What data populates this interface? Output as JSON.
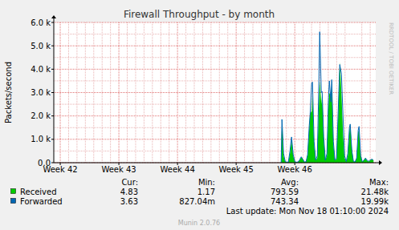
{
  "chart_data": {
    "type": "area",
    "title": "Firewall Throughput - by month",
    "ylabel": "Packets/second",
    "xlim": [
      41.89,
      47.38
    ],
    "xticks": [
      {
        "value": 42,
        "label": "Week 42"
      },
      {
        "value": 43,
        "label": "Week 43"
      },
      {
        "value": 44,
        "label": "Week 44"
      },
      {
        "value": 45,
        "label": "Week 45"
      },
      {
        "value": 46,
        "label": "Week 46"
      }
    ],
    "ylim": [
      0,
      6000
    ],
    "yticks": [
      {
        "value": 0,
        "label": "0.0"
      },
      {
        "value": 1000,
        "label": "1.0 k"
      },
      {
        "value": 2000,
        "label": "2.0 k"
      },
      {
        "value": 3000,
        "label": "3.0 k"
      },
      {
        "value": 4000,
        "label": "4.0 k"
      },
      {
        "value": 5000,
        "label": "5.0 k"
      },
      {
        "value": 6000,
        "label": "6.0 k"
      }
    ],
    "grid": true,
    "x": [
      45.767,
      45.781,
      45.808,
      45.836,
      45.863,
      45.89,
      45.918,
      45.945,
      45.973,
      46,
      46.027,
      46.055,
      46.082,
      46.11,
      46.137,
      46.164,
      46.192,
      46.219,
      46.247,
      46.26,
      46.288,
      46.301,
      46.329,
      46.356,
      46.384,
      46.411,
      46.425,
      46.452,
      46.466,
      46.493,
      46.521,
      46.548,
      46.575,
      46.589,
      46.616,
      46.63,
      46.658,
      46.685,
      46.712,
      46.74,
      46.767,
      46.795,
      46.822,
      46.849,
      46.877,
      46.904,
      46.932,
      46.945,
      46.973,
      47,
      47.027,
      47.055,
      47.082,
      47.096,
      47.123,
      47.151,
      47.178,
      47.205,
      47.233,
      47.26,
      47.288,
      47.315,
      47.342
    ],
    "legend_columns": [
      "Cur:",
      "Min:",
      "Avg:",
      "Max:"
    ],
    "series": [
      {
        "name": "Received",
        "type": "area",
        "color": "#00CC00",
        "values": [
          0,
          1800,
          300,
          50,
          20,
          30,
          400,
          1000,
          300,
          40,
          20,
          30,
          100,
          250,
          150,
          30,
          40,
          300,
          1500,
          2100,
          2200,
          3000,
          800,
          100,
          200,
          2500,
          3500,
          2500,
          3000,
          1000,
          100,
          300,
          2500,
          3000,
          2800,
          3400,
          800,
          100,
          150,
          2000,
          4300,
          3000,
          1200,
          200,
          50,
          300,
          1400,
          1650,
          600,
          60,
          30,
          200,
          1300,
          1400,
          300,
          40,
          100,
          200,
          80,
          50,
          100,
          150,
          100
        ],
        "stats": [
          4.83,
          1.17,
          793.59,
          {
            "value": 21480,
            "label": "21.48k"
          }
        ]
      },
      {
        "name": "Forwarded",
        "type": "line",
        "color": "#0066B3",
        "values": [
          0,
          1850,
          400,
          60,
          20,
          30,
          500,
          1100,
          350,
          50,
          20,
          30,
          120,
          250,
          150,
          30,
          40,
          350,
          1600,
          2000,
          3400,
          3450,
          900,
          100,
          300,
          3500,
          5600,
          3000,
          3050,
          1100,
          100,
          400,
          2800,
          3500,
          2600,
          3550,
          900,
          100,
          200,
          2200,
          4200,
          3800,
          2000,
          300,
          50,
          400,
          1500,
          1650,
          500,
          60,
          30,
          200,
          1400,
          1550,
          300,
          40,
          100,
          200,
          100,
          60,
          120,
          150,
          100
        ],
        "stats": [
          3.63,
          {
            "value": 0.82704,
            "label": "827.04m"
          },
          743.34,
          {
            "value": 19990,
            "label": "19.99k"
          }
        ]
      }
    ],
    "annotations": [
      "Last update: Mon Nov 18 01:10:00 2024",
      "Munin 2.0.76",
      "RRDTOOL / TOBI OETIKER"
    ]
  }
}
